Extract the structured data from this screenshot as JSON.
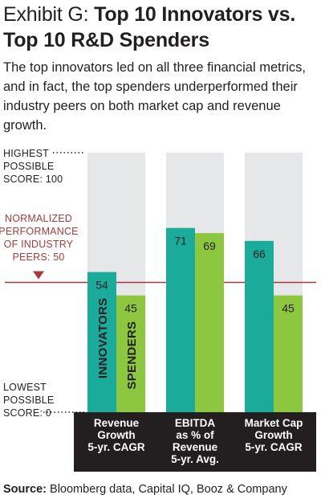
{
  "title": {
    "exhibit": "Exhibit G: ",
    "main_line1": "Top 10 Innovators vs.",
    "main_line2": "Top 10 R&D Spenders"
  },
  "subtitle": "The top innovators led on all three financial metrics, and in fact, the top spenders underperformed their industry peers on both market cap and revenue growth.",
  "source": {
    "label": "Source:",
    "text": " Bloomberg data, Capital IQ, Booz & Company"
  },
  "colors": {
    "innovators": "#1aab9b",
    "spenders": "#8dc63f",
    "background_column": "#e6e7e8",
    "reference_line": "#a33b3b",
    "label_bar": "#231f20"
  },
  "chart_data": {
    "type": "bar",
    "ylim": [
      0,
      100
    ],
    "y_annotations": [
      {
        "value": 100,
        "lines": [
          "HIGHEST",
          "POSSIBLE",
          "SCORE: 100"
        ]
      },
      {
        "value": 0,
        "lines": [
          "LOWEST",
          "POSSIBLE",
          "SCORE: 0"
        ]
      }
    ],
    "reference_line": {
      "value": 50,
      "lines": [
        "NORMALIZED",
        "PERFORMANCE",
        "OF INDUSTRY",
        "PEERS: 50"
      ]
    },
    "categories": [
      {
        "lines": [
          "Revenue",
          "Growth",
          "5-yr. CAGR"
        ]
      },
      {
        "lines": [
          "EBITDA",
          "as % of",
          "Revenue",
          "5-yr. Avg."
        ]
      },
      {
        "lines": [
          "Market Cap",
          "Growth",
          "5-yr. CAGR"
        ]
      }
    ],
    "series": [
      {
        "name": "INNOVATORS",
        "values": [
          54,
          71,
          66
        ]
      },
      {
        "name": "SPENDERS",
        "values": [
          45,
          69,
          45
        ]
      }
    ]
  }
}
